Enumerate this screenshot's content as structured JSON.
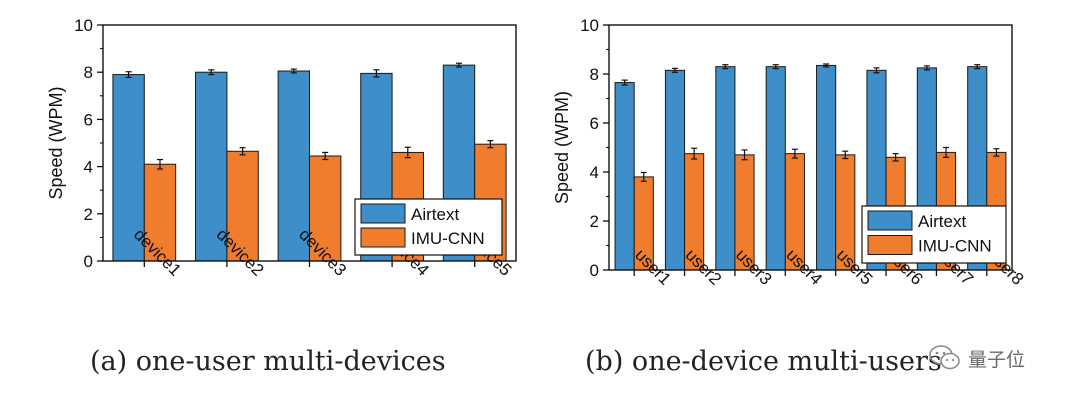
{
  "chart_data": [
    {
      "type": "bar",
      "panel": "a",
      "caption": "(a)  one-user multi-devices",
      "ylabel": "Speed (WPM)",
      "xlabel": "",
      "ylim": [
        0,
        10
      ],
      "yticks": [
        "0",
        "2",
        "4",
        "6",
        "8",
        "10"
      ],
      "grid": false,
      "legend_position": "bottom-right",
      "categories": [
        "device1",
        "device2",
        "device3",
        "device4",
        "device5"
      ],
      "series": [
        {
          "name": "Airtext",
          "color": "#3d8ec9",
          "values": [
            7.9,
            8.0,
            8.05,
            7.95,
            8.3
          ],
          "errors": [
            0.12,
            0.1,
            0.08,
            0.15,
            0.08
          ]
        },
        {
          "name": "IMU-CNN",
          "color": "#f07c2e",
          "values": [
            4.1,
            4.65,
            4.45,
            4.6,
            4.95
          ],
          "errors": [
            0.2,
            0.15,
            0.15,
            0.22,
            0.15
          ]
        }
      ]
    },
    {
      "type": "bar",
      "panel": "b",
      "caption": "(b)  one-device multi-users",
      "ylabel": "Speed (WPM)",
      "xlabel": "",
      "ylim": [
        0,
        10
      ],
      "yticks": [
        "0",
        "2",
        "4",
        "6",
        "8",
        "10"
      ],
      "grid": false,
      "legend_position": "bottom-right",
      "categories": [
        "user1",
        "user2",
        "user3",
        "user4",
        "user5",
        "user6",
        "user7",
        "user8"
      ],
      "series": [
        {
          "name": "Airtext",
          "color": "#3d8ec9",
          "values": [
            7.65,
            8.15,
            8.3,
            8.3,
            8.35,
            8.15,
            8.25,
            8.3
          ],
          "errors": [
            0.1,
            0.08,
            0.08,
            0.08,
            0.06,
            0.1,
            0.08,
            0.08
          ]
        },
        {
          "name": "IMU-CNN",
          "color": "#f07c2e",
          "values": [
            3.8,
            4.75,
            4.7,
            4.75,
            4.7,
            4.6,
            4.8,
            4.8
          ],
          "errors": [
            0.18,
            0.22,
            0.2,
            0.18,
            0.15,
            0.15,
            0.2,
            0.15
          ]
        }
      ]
    }
  ],
  "watermark": {
    "text": "量子位",
    "icon": "wechat-logo-icon"
  }
}
